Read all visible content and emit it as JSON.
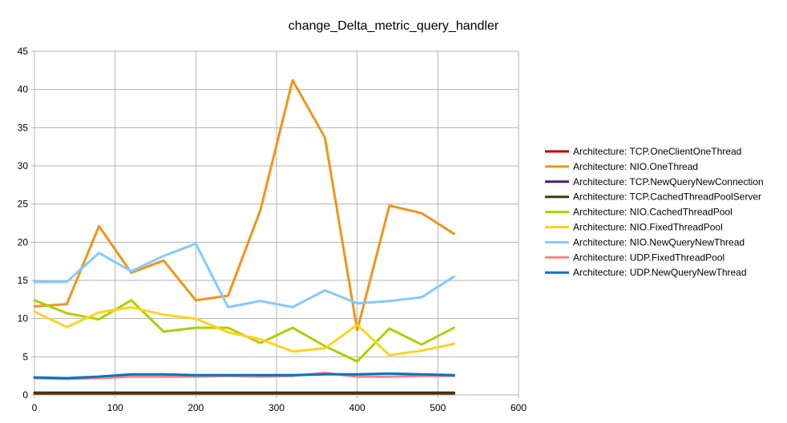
{
  "chart_data": {
    "type": "line",
    "title": "change_Delta_metric_query_handler",
    "xlabel": "",
    "ylabel": "",
    "xlim": [
      0,
      600
    ],
    "ylim": [
      0,
      45
    ],
    "xticks": [
      0,
      100,
      200,
      300,
      400,
      500,
      600
    ],
    "yticks": [
      0,
      5,
      10,
      15,
      20,
      25,
      30,
      35,
      40,
      45
    ],
    "grid": "horizontal and vertical",
    "legend_position": "right",
    "x": [
      0,
      40,
      80,
      120,
      160,
      200,
      240,
      280,
      320,
      360,
      400,
      440,
      480,
      520
    ],
    "series": [
      {
        "name": "Architecture: TCP.OneClientOneThread",
        "color": "#c00000",
        "values": [
          0.2,
          0.2,
          0.2,
          0.2,
          0.2,
          0.2,
          0.2,
          0.2,
          0.2,
          0.2,
          0.2,
          0.2,
          0.2,
          0.2
        ]
      },
      {
        "name": "Architecture: NIO.OneThread",
        "color": "#f39319",
        "values": [
          11.6,
          11.9,
          22.1,
          16.0,
          17.6,
          12.4,
          13.0,
          24.2,
          41.2,
          33.7,
          8.5,
          24.8,
          23.8,
          21.1
        ]
      },
      {
        "name": "Architecture: TCP.NewQueryNewConnection",
        "color": "#4b1f6f",
        "values": [
          0.3,
          0.3,
          0.3,
          0.3,
          0.3,
          0.3,
          0.3,
          0.3,
          0.3,
          0.3,
          0.3,
          0.3,
          0.3,
          0.3
        ]
      },
      {
        "name": "Architecture: TCP.CachedThreadPoolServer",
        "color": "#314004",
        "values": [
          0.25,
          0.25,
          0.25,
          0.25,
          0.25,
          0.25,
          0.25,
          0.25,
          0.25,
          0.25,
          0.25,
          0.25,
          0.25,
          0.25
        ]
      },
      {
        "name": "Architecture: NIO.CachedThreadPool",
        "color": "#aecf00",
        "values": [
          12.4,
          10.7,
          9.9,
          12.4,
          8.3,
          8.8,
          8.8,
          6.8,
          8.8,
          6.4,
          4.4,
          8.7,
          6.6,
          8.8
        ]
      },
      {
        "name": "Architecture: NIO.FixedThreadPool",
        "color": "#ffd320",
        "values": [
          10.9,
          8.9,
          10.8,
          11.5,
          10.5,
          10.0,
          8.2,
          7.3,
          5.7,
          6.1,
          9.2,
          5.2,
          5.8,
          6.7
        ]
      },
      {
        "name": "Architecture: NIO.NewQueryNewThread",
        "color": "#83caff",
        "values": [
          14.8,
          14.8,
          18.6,
          16.2,
          18.2,
          19.8,
          11.5,
          12.3,
          11.5,
          13.7,
          12.0,
          12.3,
          12.8,
          15.5
        ]
      },
      {
        "name": "Architecture: UDP.FixedThreadPool",
        "color": "#ff8080",
        "values": [
          2.2,
          2.1,
          2.2,
          2.4,
          2.4,
          2.4,
          2.5,
          2.4,
          2.5,
          2.9,
          2.4,
          2.4,
          2.5,
          2.5
        ]
      },
      {
        "name": "Architecture: UDP.NewQueryNewThread",
        "color": "#0074c5",
        "values": [
          2.3,
          2.2,
          2.4,
          2.7,
          2.7,
          2.6,
          2.6,
          2.6,
          2.6,
          2.7,
          2.7,
          2.8,
          2.7,
          2.6
        ]
      }
    ]
  }
}
